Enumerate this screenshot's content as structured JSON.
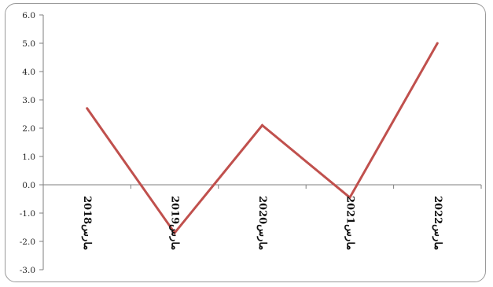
{
  "chart_data": {
    "type": "line",
    "title": "",
    "xlabel": "",
    "ylabel": "",
    "categories": [
      "مارس2018",
      "مارس2019",
      "مارس2020",
      "مارس2021",
      "مارس2022"
    ],
    "series": [
      {
        "values": [
          2.7,
          -1.7,
          2.1,
          -0.45,
          5.0
        ],
        "color": "#c0504d"
      }
    ],
    "ylim": [
      -3.0,
      6.0
    ],
    "yticks": [
      "6.0",
      "5.0",
      "4.0",
      "3.0",
      "2.0",
      "1.0",
      "0.0",
      "-1.0",
      "-2.0",
      "-3.0"
    ],
    "grid": false,
    "legend": "none",
    "colors": {
      "line": "#c0504d",
      "axis": "#7f7f7f",
      "frame": "#9a9a9a"
    }
  }
}
